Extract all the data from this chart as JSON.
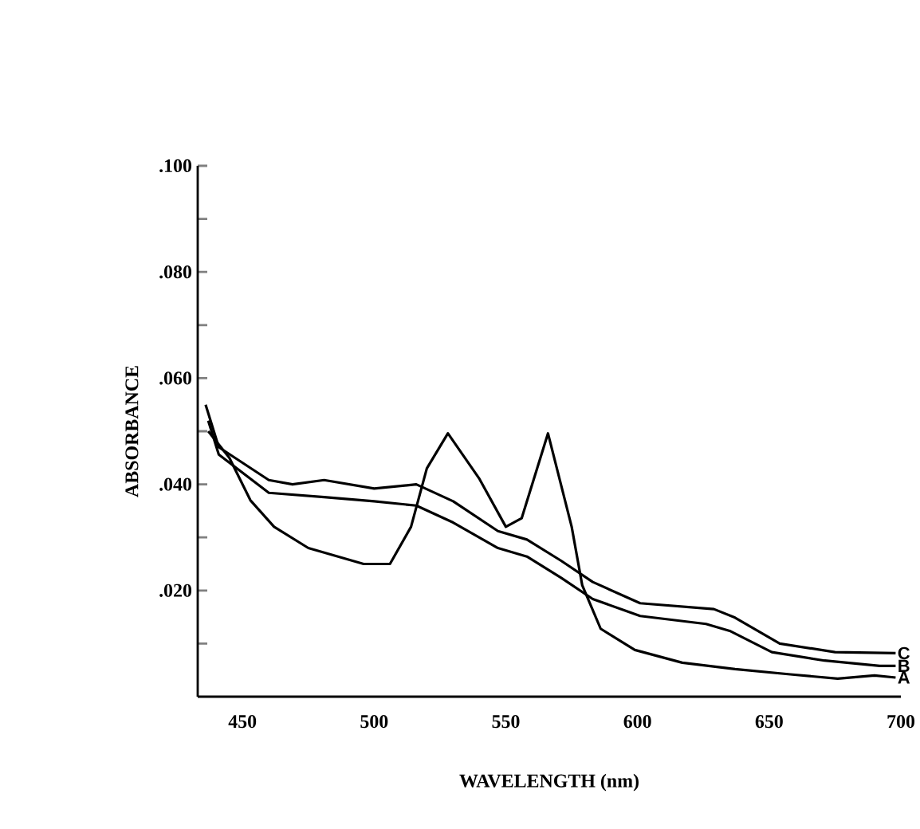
{
  "chart_data": {
    "type": "line",
    "xlabel": "WAVELENGTH (nm)",
    "ylabel": "ABSORBANCE",
    "xlim": [
      433,
      700
    ],
    "ylim": [
      0,
      0.1
    ],
    "xticks": [
      450,
      500,
      550,
      600,
      650,
      700
    ],
    "yticks": [
      {
        "value": 0.01,
        "label": null
      },
      {
        "value": 0.02,
        "label": ".020"
      },
      {
        "value": 0.03,
        "label": null
      },
      {
        "value": 0.04,
        "label": ".040"
      },
      {
        "value": 0.05,
        "label": null
      },
      {
        "value": 0.06,
        "label": ".060"
      },
      {
        "value": 0.07,
        "label": null
      },
      {
        "value": 0.08,
        "label": ".080"
      },
      {
        "value": 0.09,
        "label": null
      },
      {
        "value": 0.1,
        "label": ".100"
      }
    ],
    "grid": false,
    "legend": false,
    "marker": "none",
    "line_style": "solid",
    "series": [
      {
        "name": "A",
        "color": "#000000",
        "x": [
          437,
          445,
          453,
          462,
          475,
          496,
          506,
          514,
          520,
          528,
          540,
          550,
          556,
          566,
          575,
          579,
          586,
          599,
          617,
          637,
          658,
          676,
          690,
          698
        ],
        "values": [
          0.05,
          0.045,
          0.037,
          0.032,
          0.028,
          0.025,
          0.025,
          0.032,
          0.043,
          0.0496,
          0.041,
          0.032,
          0.0336,
          0.0496,
          0.032,
          0.021,
          0.0128,
          0.0088,
          0.0064,
          0.0052,
          0.0042,
          0.0034,
          0.004,
          0.0036
        ]
      },
      {
        "name": "B",
        "color": "#000000",
        "x": [
          437,
          441,
          460,
          481,
          500,
          516,
          530,
          547,
          558,
          571,
          583,
          601,
          626,
          635,
          651,
          671,
          692,
          698
        ],
        "values": [
          0.052,
          0.0456,
          0.0384,
          0.0376,
          0.0368,
          0.036,
          0.0328,
          0.028,
          0.0264,
          0.0224,
          0.0184,
          0.0152,
          0.0137,
          0.0124,
          0.0084,
          0.0068,
          0.0058,
          0.0058
        ]
      },
      {
        "name": "C",
        "color": "#000000",
        "x": [
          436,
          441,
          460,
          469,
          481,
          500,
          516,
          530,
          547,
          558,
          571,
          583,
          601,
          629,
          637,
          654,
          675,
          698
        ],
        "values": [
          0.055,
          0.047,
          0.0408,
          0.04,
          0.0408,
          0.0392,
          0.04,
          0.0368,
          0.0312,
          0.0296,
          0.0256,
          0.0216,
          0.0176,
          0.0165,
          0.0149,
          0.01,
          0.0084,
          0.0082
        ]
      }
    ]
  }
}
